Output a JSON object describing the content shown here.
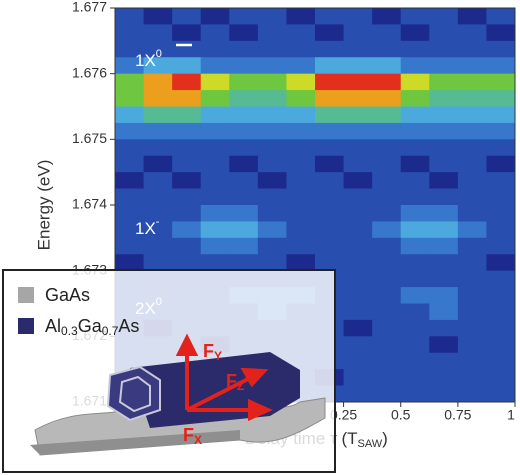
{
  "chart_data": {
    "type": "heatmap",
    "ylabel": "Energy (eV)",
    "xlabel": {
      "main": "Delay time τ (T",
      "sub": "SAW",
      "end": ")"
    },
    "xlim": [
      -0.75,
      1
    ],
    "ylim": [
      1.671,
      1.677
    ],
    "xticks": [
      0.25,
      0.5,
      0.75,
      1
    ],
    "yticks": [
      1.671,
      1.672,
      1.673,
      1.674,
      1.675,
      1.676,
      1.677
    ],
    "colormap": [
      "#1b2a8c",
      "#2f63c4",
      "#4fb3e2",
      "#5cc244",
      "#f2e21e",
      "#e2301c"
    ],
    "annotations": [
      {
        "text": "1X",
        "sup": "0"
      },
      {
        "text": "1X",
        "sup": "-"
      },
      {
        "text": "2X",
        "sup": "0"
      }
    ],
    "inset": {
      "legend": [
        {
          "name": "GaAs",
          "color": "#a6a6a6"
        },
        {
          "name": [
            "Al",
            "0.3",
            "Ga",
            "0.7",
            "As"
          ],
          "color": "#2b2a6b"
        }
      ],
      "forces": [
        {
          "text": "F",
          "sub": "Y"
        },
        {
          "text": "F",
          "sub": "Z"
        },
        {
          "text": "F",
          "sub": "X"
        }
      ]
    },
    "z": [
      [
        2,
        1,
        2,
        1,
        2,
        2,
        1,
        2,
        2,
        1,
        2,
        2,
        1,
        2
      ],
      [
        2,
        2,
        1,
        2,
        1,
        2,
        2,
        1,
        2,
        2,
        1,
        2,
        2,
        1
      ],
      [
        2,
        2,
        2,
        2,
        2,
        2,
        2,
        2,
        2,
        2,
        2,
        2,
        2,
        2
      ],
      [
        3,
        4,
        4,
        3,
        3,
        3,
        3,
        4,
        4,
        4,
        3,
        3,
        3,
        3
      ],
      [
        6,
        8,
        9,
        7,
        6,
        6,
        7,
        9,
        9,
        9,
        7,
        6,
        6,
        6
      ],
      [
        6,
        8,
        8,
        6,
        5,
        5,
        6,
        8,
        8,
        8,
        6,
        5,
        5,
        5
      ],
      [
        4,
        5,
        5,
        4,
        4,
        4,
        4,
        5,
        5,
        5,
        4,
        4,
        4,
        4
      ],
      [
        3,
        3,
        3,
        3,
        3,
        3,
        3,
        3,
        3,
        3,
        3,
        3,
        3,
        3
      ],
      [
        2,
        2,
        2,
        2,
        2,
        2,
        2,
        2,
        2,
        2,
        2,
        2,
        2,
        2
      ],
      [
        2,
        1,
        2,
        2,
        1,
        2,
        2,
        1,
        2,
        2,
        1,
        2,
        2,
        1
      ],
      [
        1,
        2,
        1,
        2,
        2,
        1,
        2,
        2,
        1,
        2,
        2,
        1,
        2,
        2
      ],
      [
        2,
        2,
        2,
        2,
        2,
        2,
        2,
        2,
        2,
        2,
        2,
        2,
        2,
        2
      ],
      [
        2,
        2,
        2,
        3,
        3,
        2,
        2,
        2,
        2,
        2,
        3,
        3,
        2,
        2
      ],
      [
        2,
        2,
        3,
        4,
        4,
        3,
        2,
        2,
        2,
        3,
        4,
        4,
        3,
        2
      ],
      [
        2,
        2,
        2,
        3,
        3,
        2,
        2,
        2,
        2,
        2,
        3,
        3,
        2,
        2
      ],
      [
        1,
        2,
        2,
        2,
        2,
        2,
        1,
        2,
        2,
        2,
        2,
        2,
        2,
        1
      ],
      [
        2,
        2,
        2,
        2,
        2,
        2,
        2,
        2,
        2,
        2,
        2,
        2,
        2,
        2
      ],
      [
        2,
        2,
        2,
        2,
        3,
        3,
        3,
        2,
        2,
        2,
        3,
        3,
        2,
        2
      ],
      [
        2,
        2,
        2,
        2,
        2,
        3,
        2,
        2,
        2,
        2,
        2,
        3,
        2,
        2
      ],
      [
        2,
        1,
        2,
        2,
        2,
        2,
        2,
        2,
        1,
        2,
        2,
        2,
        2,
        2
      ],
      [
        2,
        2,
        2,
        1,
        2,
        2,
        2,
        2,
        2,
        2,
        2,
        1,
        2,
        2
      ],
      [
        2,
        2,
        2,
        2,
        2,
        2,
        2,
        2,
        2,
        2,
        2,
        2,
        2,
        2
      ],
      [
        2,
        2,
        1,
        2,
        2,
        2,
        2,
        1,
        2,
        2,
        2,
        2,
        2,
        2
      ],
      [
        2,
        2,
        2,
        2,
        2,
        2,
        2,
        2,
        2,
        2,
        2,
        2,
        2,
        2
      ]
    ]
  }
}
